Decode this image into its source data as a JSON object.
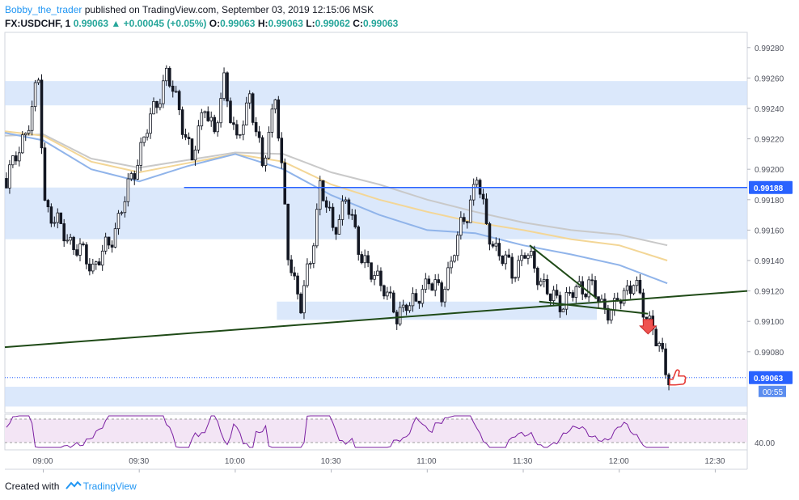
{
  "header": {
    "author": "Bobby_the_trader",
    "published_text": " published on TradingView.com, September 03, 2019 12:15:06 MSK"
  },
  "symbol_line": {
    "symbol": "FX:USDCHF, 1",
    "last": "0.99063",
    "arrow": "▲",
    "change": "+0.00045 (+0.05%)",
    "o_label": "O:",
    "o": "0.99063",
    "h_label": "H:",
    "h": "0.99063",
    "l_label": "L:",
    "l": "0.99062",
    "c_label": "C:",
    "c": "0.99063"
  },
  "footer": {
    "created_with": "Created with",
    "brand": "TradingView"
  },
  "colors": {
    "up": "#26a69a",
    "candle": "#131722",
    "zone": "#cfe0fa",
    "hline": "#2962ff",
    "trend": "#1f4a17",
    "rsi": "#7b1fa2",
    "rsi_band": "#f3e5f5",
    "price_tag": "#2962ff"
  },
  "chart_data": {
    "type": "candlestick",
    "price_axis": {
      "min": 0.9904,
      "max": 0.9929,
      "ticks": [
        "0.99280",
        "0.99260",
        "0.99240",
        "0.99220",
        "0.99200",
        "0.99180",
        "0.99160",
        "0.99140",
        "0.99120",
        "0.99100",
        "0.99080"
      ]
    },
    "time_axis": {
      "start": "08:48",
      "end": "12:40",
      "ticks": [
        "09:00",
        "09:30",
        "10:00",
        "10:30",
        "11:00",
        "11:30",
        "12:00",
        "12:30"
      ]
    },
    "horizontal_line": {
      "price": 0.99188,
      "label": "0.99188",
      "start": "09:44"
    },
    "last_price": {
      "price": 0.99063,
      "label": "0.99063",
      "countdown": "00:55"
    },
    "zones": [
      {
        "from": 0.99242,
        "to": 0.99258,
        "start": "08:48",
        "end": "12:40"
      },
      {
        "from": 0.99154,
        "to": 0.99188,
        "start": "08:48",
        "end": "12:40"
      },
      {
        "from": 0.99101,
        "to": 0.99113,
        "start": "10:13",
        "end": "11:53"
      },
      {
        "from": 0.99044,
        "to": 0.99057,
        "start": "08:48",
        "end": "12:40"
      }
    ],
    "trendlines": [
      {
        "start": [
          "08:48",
          0.99083
        ],
        "end": [
          "12:40",
          0.9912
        ]
      },
      {
        "start": [
          "11:32",
          0.9915
        ],
        "end": [
          "11:53",
          0.99115
        ]
      },
      {
        "start": [
          "11:35",
          0.99113
        ],
        "end": [
          "12:09",
          0.99105
        ]
      }
    ],
    "moving_averages": [
      {
        "color": "#c9c9c9",
        "points": [
          [
            "08:48",
            0.99222
          ],
          [
            "09:00",
            0.99223
          ],
          [
            "09:15",
            0.99207
          ],
          [
            "09:30",
            0.99201
          ],
          [
            "09:45",
            0.99206
          ],
          [
            "10:00",
            0.99211
          ],
          [
            "10:15",
            0.9921
          ],
          [
            "10:30",
            0.99198
          ],
          [
            "10:45",
            0.9919
          ],
          [
            "11:00",
            0.9918
          ],
          [
            "11:15",
            0.99172
          ],
          [
            "11:30",
            0.99165
          ],
          [
            "11:45",
            0.9916
          ],
          [
            "12:00",
            0.99157
          ],
          [
            "12:15",
            0.9915
          ]
        ]
      },
      {
        "color": "#f3d696",
        "points": [
          [
            "08:48",
            0.99225
          ],
          [
            "09:00",
            0.99222
          ],
          [
            "09:15",
            0.99205
          ],
          [
            "09:30",
            0.99198
          ],
          [
            "09:45",
            0.99204
          ],
          [
            "10:00",
            0.9921
          ],
          [
            "10:15",
            0.99205
          ],
          [
            "10:30",
            0.9919
          ],
          [
            "10:45",
            0.9918
          ],
          [
            "11:00",
            0.99172
          ],
          [
            "11:15",
            0.99165
          ],
          [
            "11:30",
            0.9916
          ],
          [
            "11:45",
            0.99154
          ],
          [
            "12:00",
            0.9915
          ],
          [
            "12:15",
            0.9914
          ]
        ]
      },
      {
        "color": "#90b4ea",
        "points": [
          [
            "08:48",
            0.99224
          ],
          [
            "09:00",
            0.99219
          ],
          [
            "09:15",
            0.992
          ],
          [
            "09:30",
            0.99192
          ],
          [
            "09:45",
            0.99202
          ],
          [
            "10:00",
            0.9921
          ],
          [
            "10:15",
            0.992
          ],
          [
            "10:30",
            0.99183
          ],
          [
            "10:45",
            0.9917
          ],
          [
            "11:00",
            0.9916
          ],
          [
            "11:15",
            0.99158
          ],
          [
            "11:30",
            0.9915
          ],
          [
            "11:45",
            0.99144
          ],
          [
            "12:00",
            0.99137
          ],
          [
            "12:15",
            0.99125
          ]
        ]
      }
    ],
    "path": [
      [
        "08:48",
        0.99194
      ],
      [
        "08:52",
        0.99212
      ],
      [
        "08:56",
        0.9924
      ],
      [
        "08:58",
        0.99258
      ],
      [
        "09:00",
        0.99178
      ],
      [
        "09:05",
        0.9916
      ],
      [
        "09:10",
        0.99148
      ],
      [
        "09:15",
        0.99136
      ],
      [
        "09:20",
        0.9915
      ],
      [
        "09:25",
        0.9918
      ],
      [
        "09:30",
        0.99214
      ],
      [
        "09:35",
        0.99245
      ],
      [
        "09:38",
        0.99262
      ],
      [
        "09:42",
        0.9924
      ],
      [
        "09:46",
        0.99205
      ],
      [
        "09:50",
        0.99245
      ],
      [
        "09:53",
        0.9922
      ],
      [
        "09:56",
        0.9926
      ],
      [
        "10:00",
        0.99215
      ],
      [
        "10:04",
        0.9925
      ],
      [
        "10:08",
        0.992
      ],
      [
        "10:12",
        0.9925
      ],
      [
        "10:16",
        0.99145
      ],
      [
        "10:20",
        0.9911
      ],
      [
        "10:23",
        0.9914
      ],
      [
        "10:26",
        0.9919
      ],
      [
        "10:30",
        0.9916
      ],
      [
        "10:34",
        0.9918
      ],
      [
        "10:38",
        0.9915
      ],
      [
        "10:42",
        0.9913
      ],
      [
        "10:46",
        0.99125
      ],
      [
        "10:50",
        0.991
      ],
      [
        "10:53",
        0.99115
      ],
      [
        "10:56",
        0.9911
      ],
      [
        "11:00",
        0.9913
      ],
      [
        "11:04",
        0.99115
      ],
      [
        "11:08",
        0.9915
      ],
      [
        "11:12",
        0.9917
      ],
      [
        "11:15",
        0.99198
      ],
      [
        "11:18",
        0.9916
      ],
      [
        "11:22",
        0.99145
      ],
      [
        "11:26",
        0.99132
      ],
      [
        "11:30",
        0.99145
      ],
      [
        "11:34",
        0.99132
      ],
      [
        "11:38",
        0.99115
      ],
      [
        "11:42",
        0.99113
      ],
      [
        "11:46",
        0.9912
      ],
      [
        "11:50",
        0.99125
      ],
      [
        "11:54",
        0.9911
      ],
      [
        "11:58",
        0.99108
      ],
      [
        "12:00",
        0.99115
      ],
      [
        "12:04",
        0.99128
      ],
      [
        "12:07",
        0.99106
      ],
      [
        "12:10",
        0.99098
      ],
      [
        "12:12",
        0.99082
      ],
      [
        "12:14",
        0.99066
      ],
      [
        "12:15",
        0.99063
      ]
    ],
    "rsi": {
      "label": "40.00",
      "level": 40
    }
  }
}
